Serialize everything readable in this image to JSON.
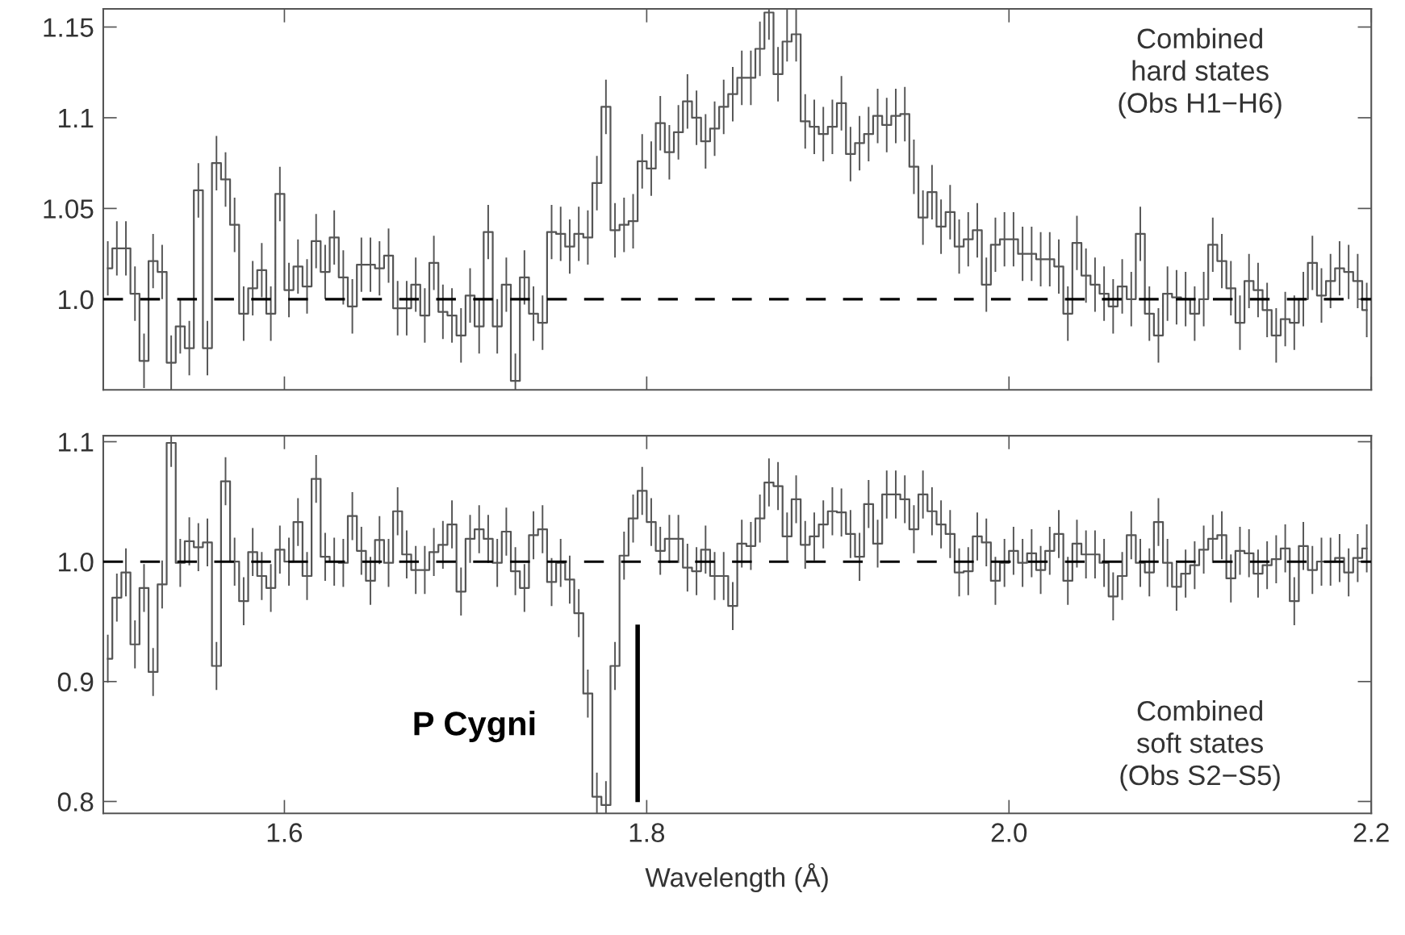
{
  "chart_data": [
    {
      "type": "step",
      "xlim": [
        1.5,
        2.2
      ],
      "ylim": [
        0.95,
        1.16
      ],
      "xticks": [
        1.6,
        1.8,
        2.0,
        2.2
      ],
      "yticks": [
        {
          "value": 1.0,
          "label": "1.0"
        },
        1.05,
        1.1,
        1.15
      ],
      "tick_labels": "y",
      "ref_lines": [
        {
          "axis": "y",
          "value": 1.0,
          "color": "#000000",
          "line_style": "dashed"
        }
      ],
      "annotations": [
        "Combined\nhard states\n(Obs H1−H6)"
      ],
      "series": [
        {
          "color": "#555555",
          "x": [
            1.5025,
            1.5075,
            1.5125,
            1.5175,
            1.5225,
            1.5275,
            1.5325,
            1.5375,
            1.5425,
            1.5475,
            1.5525,
            1.5575,
            1.5625,
            1.5675,
            1.5725,
            1.5775,
            1.5825,
            1.5875,
            1.5925,
            1.5975,
            1.6025,
            1.6075,
            1.6125,
            1.6175,
            1.6225,
            1.6275,
            1.6325,
            1.6375,
            1.6425,
            1.6475,
            1.6525,
            1.6575,
            1.6625,
            1.6675,
            1.6725,
            1.6775,
            1.6825,
            1.6875,
            1.6925,
            1.6975,
            1.7025,
            1.7075,
            1.7125,
            1.7175,
            1.7225,
            1.7275,
            1.7325,
            1.7375,
            1.7425,
            1.7475,
            1.7525,
            1.7575,
            1.7625,
            1.7675,
            1.7725,
            1.7775,
            1.7825,
            1.7875,
            1.7925,
            1.7975,
            1.8025,
            1.8075,
            1.8125,
            1.8175,
            1.8225,
            1.8275,
            1.8325,
            1.8375,
            1.8425,
            1.8475,
            1.8525,
            1.8575,
            1.8625,
            1.8675,
            1.8725,
            1.8775,
            1.8825,
            1.8875,
            1.8925,
            1.8975,
            1.9025,
            1.9075,
            1.9125,
            1.9175,
            1.9225,
            1.9275,
            1.9325,
            1.9375,
            1.9425,
            1.9475,
            1.9525,
            1.9575,
            1.9625,
            1.9675,
            1.9725,
            1.9775,
            1.9825,
            1.9875,
            1.9925,
            1.9975,
            2.0025,
            2.0075,
            2.0125,
            2.0175,
            2.0225,
            2.0275,
            2.0325,
            2.0375,
            2.0425,
            2.0475,
            2.0525,
            2.0575,
            2.0625,
            2.0675,
            2.0725,
            2.0775,
            2.0825,
            2.0875,
            2.0925,
            2.0975,
            2.1025,
            2.1075,
            2.1125,
            2.1175,
            2.1225,
            2.1275,
            2.1325,
            2.1375,
            2.1425,
            2.1475,
            2.1525,
            2.1575,
            2.1625,
            2.1675,
            2.1725,
            2.1775,
            2.1825,
            2.1875,
            2.1925,
            2.1975
          ],
          "values": [
            1.017,
            1.028,
            1.028,
            1.003,
            0.966,
            1.021,
            1.015,
            0.965,
            0.985,
            0.973,
            1.06,
            0.973,
            1.075,
            1.066,
            1.041,
            0.992,
            1.006,
            1.016,
            0.992,
            1.058,
            1.005,
            1.018,
            1.007,
            1.032,
            1.015,
            1.034,
            1.012,
            0.996,
            1.019,
            1.019,
            1.017,
            1.024,
            0.995,
            0.995,
            1.008,
            0.991,
            1.02,
            0.993,
            0.991,
            0.98,
            1.002,
            0.985,
            1.037,
            0.985,
            1.008,
            0.955,
            1.012,
            0.992,
            0.987,
            1.037,
            1.036,
            1.029,
            1.036,
            1.034,
            1.064,
            1.106,
            1.038,
            1.041,
            1.043,
            1.076,
            1.072,
            1.097,
            1.081,
            1.092,
            1.109,
            1.1,
            1.087,
            1.094,
            1.106,
            1.113,
            1.122,
            1.122,
            1.138,
            1.158,
            1.124,
            1.142,
            1.146,
            1.098,
            1.095,
            1.091,
            1.095,
            1.108,
            1.08,
            1.086,
            1.091,
            1.101,
            1.096,
            1.101,
            1.102,
            1.073,
            1.045,
            1.059,
            1.04,
            1.048,
            1.029,
            1.033,
            1.038,
            1.008,
            1.03,
            1.033,
            1.033,
            1.025,
            1.025,
            1.022,
            1.022,
            1.018,
            0.992,
            1.031,
            1.013,
            1.008,
            1.003,
            0.996,
            1.007,
            1.0,
            1.036,
            0.992,
            0.98,
            1.003,
            1.001,
            1.0,
            0.992,
            1.0,
            1.03,
            1.021,
            1.006,
            0.987,
            1.01,
            1.005,
            0.994,
            0.98,
            0.989,
            0.987,
            1.0,
            1.02,
            1.002,
            1.01,
            1.017,
            1.015,
            1.01,
            0.994
          ],
          "errors": [
            0.015,
            0.015,
            0.015,
            0.015,
            0.015,
            0.015,
            0.015,
            0.015,
            0.015,
            0.015,
            0.015,
            0.015,
            0.015,
            0.015,
            0.015,
            0.015,
            0.015,
            0.015,
            0.015,
            0.015,
            0.015,
            0.015,
            0.015,
            0.015,
            0.015,
            0.015,
            0.015,
            0.015,
            0.015,
            0.015,
            0.015,
            0.015,
            0.015,
            0.015,
            0.015,
            0.015,
            0.015,
            0.015,
            0.015,
            0.015,
            0.015,
            0.015,
            0.015,
            0.015,
            0.015,
            [
              0.95,
              0.97
            ],
            0.015,
            0.015,
            0.015,
            0.015,
            0.015,
            0.015,
            0.015,
            0.015,
            0.015,
            0.015,
            0.015,
            0.015,
            0.015,
            0.015,
            0.015,
            0.015,
            0.015,
            0.015,
            0.015,
            0.015,
            0.015,
            0.015,
            0.015,
            0.015,
            0.015,
            0.015,
            0.015,
            [
              1.143,
              1.16
            ],
            0.015,
            [
              1.131,
              1.16
            ],
            0.015,
            0.015,
            0.015,
            0.015,
            0.015,
            0.015,
            0.015,
            0.015,
            0.015,
            0.015,
            0.015,
            0.015,
            0.015,
            0.015,
            0.015,
            0.015,
            0.015,
            0.015,
            0.015,
            0.015,
            0.015,
            0.015,
            0.015,
            0.015,
            0.015,
            0.015,
            0.015,
            0.015,
            0.015,
            0.015,
            0.015,
            0.015,
            0.015,
            0.015,
            0.015,
            0.015,
            0.015,
            0.015,
            0.015,
            0.015,
            0.015,
            0.015,
            0.015,
            0.015,
            0.015,
            0.015,
            0.015,
            0.015,
            0.015,
            0.015,
            0.015,
            0.015,
            0.015,
            0.015,
            0.015,
            0.015,
            0.015,
            0.015,
            0.015,
            0.015,
            0.015,
            0.015,
            0.015,
            0.015
          ]
        }
      ]
    },
    {
      "type": "step",
      "xlim": [
        1.5,
        2.2
      ],
      "ylim": [
        0.79,
        1.105
      ],
      "xticks": [
        1.6,
        1.8,
        {
          "value": 2.0,
          "label": "2.0"
        },
        2.2
      ],
      "yticks": [
        0.8,
        0.9,
        {
          "value": 1.0,
          "label": "1.0"
        },
        1.1
      ],
      "xlabel": "Wavelength (Å)",
      "ref_lines": [
        {
          "axis": "y",
          "value": 1.0,
          "color": "#000000",
          "line_style": "dashed"
        },
        {
          "axis": "x",
          "value": 1.795,
          "label": "P Cygni",
          "color": "#000000",
          "line_style": "solid"
        }
      ],
      "annotations": [
        "Combined\nsoft states\n(Obs S2−S5)"
      ],
      "series": [
        {
          "color": "#555555",
          "x": [
            1.5025,
            1.5075,
            1.5125,
            1.5175,
            1.5225,
            1.5275,
            1.5325,
            1.5375,
            1.5425,
            1.5475,
            1.5525,
            1.5575,
            1.5625,
            1.5675,
            1.5725,
            1.5775,
            1.5825,
            1.5875,
            1.5925,
            1.5975,
            1.6025,
            1.6075,
            1.6125,
            1.6175,
            1.6225,
            1.6275,
            1.6325,
            1.6375,
            1.6425,
            1.6475,
            1.6525,
            1.6575,
            1.6625,
            1.6675,
            1.6725,
            1.6775,
            1.6825,
            1.6875,
            1.6925,
            1.6975,
            1.7025,
            1.7075,
            1.7125,
            1.7175,
            1.7225,
            1.7275,
            1.7325,
            1.7375,
            1.7425,
            1.7475,
            1.7525,
            1.7575,
            1.7625,
            1.7675,
            1.7725,
            1.7775,
            1.7825,
            1.7875,
            1.7925,
            1.7975,
            1.8025,
            1.8075,
            1.8125,
            1.8175,
            1.8225,
            1.8275,
            1.8325,
            1.8375,
            1.8425,
            1.8475,
            1.8525,
            1.8575,
            1.8625,
            1.8675,
            1.8725,
            1.8775,
            1.8825,
            1.8875,
            1.8925,
            1.8975,
            1.9025,
            1.9075,
            1.9125,
            1.9175,
            1.9225,
            1.9275,
            1.9325,
            1.9375,
            1.9425,
            1.9475,
            1.9525,
            1.9575,
            1.9625,
            1.9675,
            1.9725,
            1.9775,
            1.9825,
            1.9875,
            1.9925,
            1.9975,
            2.0025,
            2.0075,
            2.0125,
            2.0175,
            2.0225,
            2.0275,
            2.0325,
            2.0375,
            2.0425,
            2.0475,
            2.0525,
            2.0575,
            2.0625,
            2.0675,
            2.0725,
            2.0775,
            2.0825,
            2.0875,
            2.0925,
            2.0975,
            2.1025,
            2.1075,
            2.1125,
            2.1175,
            2.1225,
            2.1275,
            2.1325,
            2.1375,
            2.1425,
            2.1475,
            2.1525,
            2.1575,
            2.1625,
            2.1675,
            2.1725,
            2.1775,
            2.1825,
            2.1875,
            2.1925,
            2.1975
          ],
          "values": [
            0.919,
            0.97,
            0.991,
            0.931,
            0.978,
            0.908,
            0.981,
            1.099,
            0.999,
            1.017,
            1.012,
            1.016,
            0.913,
            1.067,
            1.0,
            0.967,
            1.008,
            0.988,
            0.978,
            1.01,
            1.0,
            1.033,
            0.988,
            1.069,
            1.004,
            1.0,
            0.999,
            1.038,
            1.009,
            0.984,
            1.018,
            0.999,
            1.042,
            1.006,
            0.993,
            0.993,
            1.008,
            1.014,
            1.031,
            0.975,
            1.019,
            1.027,
            1.019,
            0.999,
            1.025,
            0.992,
            0.978,
            1.022,
            1.027,
            0.983,
            0.999,
            0.985,
            0.957,
            0.89,
            0.804,
            0.797,
            0.913,
            1.005,
            1.036,
            1.059,
            1.033,
            1.009,
            1.019,
            1.019,
            0.995,
            0.992,
            1.01,
            0.988,
            0.988,
            0.963,
            1.015,
            1.013,
            1.036,
            1.066,
            1.063,
            1.021,
            1.052,
            1.014,
            1.021,
            1.031,
            1.042,
            1.041,
            1.023,
            1.004,
            1.048,
            1.015,
            1.056,
            1.056,
            1.052,
            1.027,
            1.056,
            1.042,
            1.031,
            1.023,
            0.991,
            0.992,
            1.021,
            1.016,
            0.984,
            0.999,
            1.009,
            0.999,
            1.007,
            0.993,
            1.009,
            1.023,
            0.984,
            1.015,
            1.006,
            1.006,
            0.999,
            0.971,
            0.988,
            1.022,
            0.999,
            0.991,
            1.033,
            0.999,
            0.979,
            0.99,
            0.997,
            1.01,
            1.019,
            1.022,
            0.986,
            1.009,
            1.007,
            0.99,
            0.997,
            1.002,
            1.011,
            0.967,
            1.013,
            0.993,
            1.0,
            1.0,
            1.003,
            0.991,
            1.003,
            1.011
          ],
          "errors": [
            0.02,
            0.02,
            0.02,
            0.02,
            0.02,
            0.02,
            0.02,
            [
              1.079,
              1.105
            ],
            0.02,
            0.02,
            0.02,
            0.02,
            0.02,
            0.02,
            0.02,
            0.02,
            0.02,
            0.02,
            0.02,
            0.02,
            0.02,
            0.02,
            0.02,
            0.02,
            0.02,
            0.02,
            0.02,
            0.02,
            0.02,
            0.02,
            0.02,
            0.02,
            0.02,
            0.02,
            0.02,
            0.02,
            0.02,
            0.02,
            0.02,
            0.02,
            0.02,
            0.02,
            0.02,
            0.02,
            0.02,
            0.02,
            0.02,
            0.02,
            0.02,
            0.02,
            0.02,
            0.02,
            0.02,
            0.02,
            [
              0.79,
              0.824
            ],
            [
              0.79,
              0.817
            ],
            0.02,
            0.02,
            0.02,
            0.02,
            0.02,
            0.02,
            0.02,
            0.02,
            0.02,
            0.02,
            0.02,
            0.02,
            0.02,
            0.02,
            0.02,
            0.02,
            0.02,
            0.02,
            0.02,
            0.02,
            0.02,
            0.02,
            0.02,
            0.02,
            0.02,
            0.02,
            0.02,
            0.02,
            0.02,
            0.02,
            0.02,
            0.02,
            0.02,
            0.02,
            0.02,
            0.02,
            0.02,
            0.02,
            0.02,
            0.02,
            0.02,
            0.02,
            0.02,
            0.02,
            0.02,
            0.02,
            0.02,
            0.02,
            0.02,
            0.02,
            0.02,
            0.02,
            0.02,
            0.02,
            0.02,
            0.02,
            0.02,
            0.02,
            0.02,
            0.02,
            0.02,
            0.02,
            0.02,
            0.02,
            0.02,
            0.02,
            0.02,
            0.02,
            0.02,
            0.02,
            0.02,
            0.02,
            0.02,
            0.02,
            0.02,
            0.02,
            0.02,
            0.02,
            0.02,
            0.02,
            0.02,
            0.02,
            0.02,
            0.02
          ]
        }
      ]
    }
  ]
}
